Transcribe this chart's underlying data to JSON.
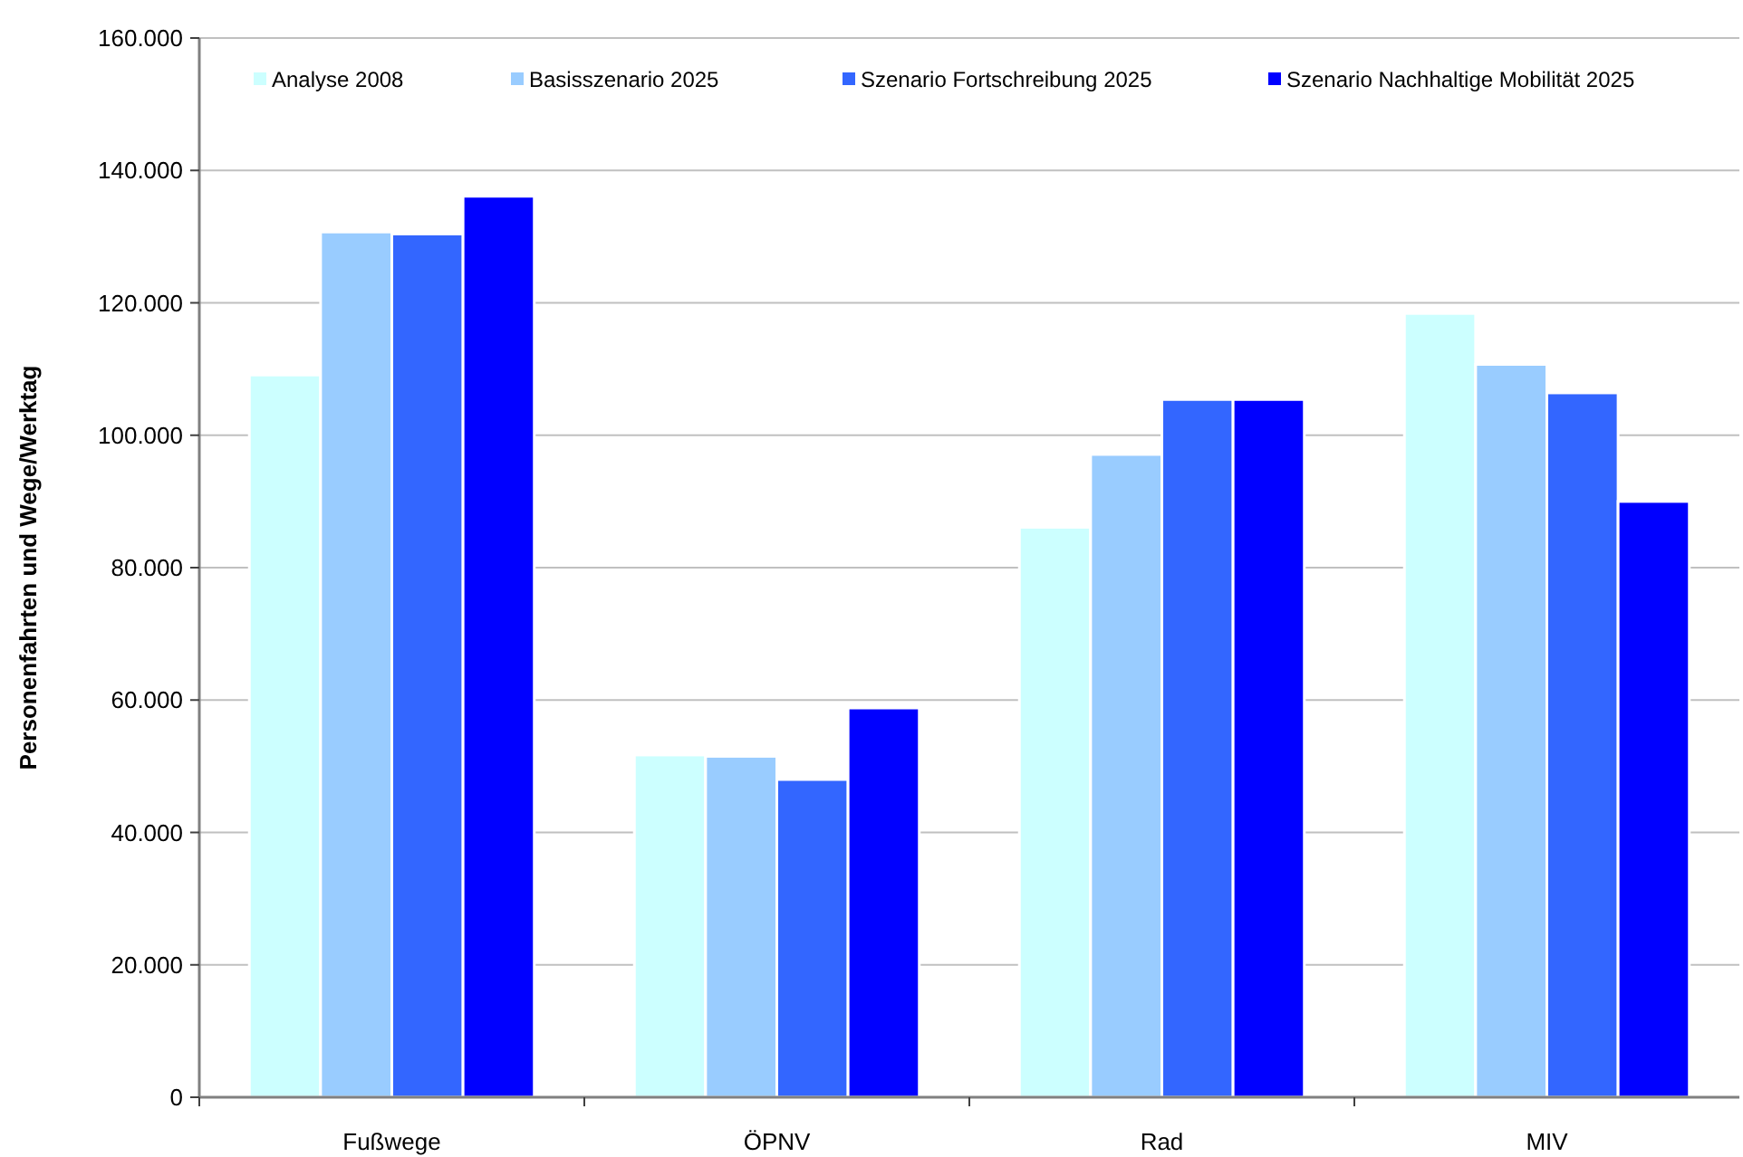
{
  "chart_data": {
    "type": "bar",
    "ylabel": "Personenfahrten und Wege/Werktag",
    "categories": [
      "Fußwege",
      "ÖPNV",
      "Rad",
      "MIV"
    ],
    "series": [
      {
        "name": "Analyse 2008",
        "color": "#ccffff",
        "values": [
          109100,
          51700,
          86100,
          118400
        ]
      },
      {
        "name": "Basisszenario 2025",
        "color": "#99ccff",
        "values": [
          130700,
          51500,
          97100,
          110700
        ]
      },
      {
        "name": "Szenario Fortschreibung 2025",
        "color": "#3366ff",
        "values": [
          130400,
          48000,
          105400,
          106400
        ]
      },
      {
        "name": "Szenario Nachhaltige Mobilität 2025",
        "color": "#0000ff",
        "values": [
          136100,
          58800,
          105400,
          90000
        ]
      }
    ],
    "ylim": [
      0,
      160000
    ],
    "yticks": [
      0,
      {
        "value": 20000,
        "label": "20.000"
      },
      {
        "value": 40000,
        "label": "40.000"
      },
      {
        "value": 60000,
        "label": "60.000"
      },
      {
        "value": 80000,
        "label": "80.000"
      },
      {
        "value": 100000,
        "label": "100.000"
      },
      {
        "value": 120000,
        "label": "120.000"
      },
      {
        "value": 140000,
        "label": "140.000"
      },
      {
        "value": 160000,
        "label": "160.000"
      }
    ],
    "grid": "y",
    "legend": "top"
  }
}
